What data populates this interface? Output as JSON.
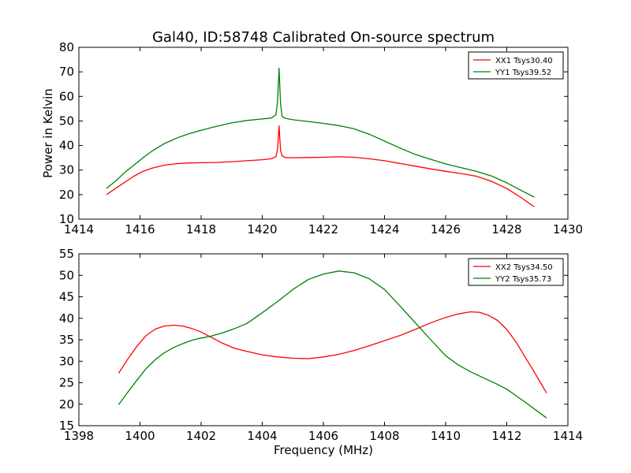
{
  "figure": {
    "title": "Gal40, ID:58748 Calibrated On-source spectrum"
  },
  "chart_data": [
    {
      "type": "line",
      "title": "Gal40, ID:58748 Calibrated On-source spectrum",
      "xlabel": "",
      "ylabel": "Power in Kelvin",
      "xlim": [
        1414,
        1430
      ],
      "ylim": [
        10,
        80
      ],
      "xticks": [
        1414,
        1416,
        1418,
        1420,
        1422,
        1424,
        1426,
        1428,
        1430
      ],
      "yticks": [
        10,
        20,
        30,
        40,
        50,
        60,
        70,
        80
      ],
      "grid": false,
      "legend_position": "top-right",
      "series": [
        {
          "name": "XX1 Tsys30.40",
          "color": "#ff0000",
          "x": [
            1414.9,
            1415.2,
            1415.5,
            1415.8,
            1416.1,
            1416.4,
            1416.8,
            1417.2,
            1417.6,
            1418.0,
            1418.5,
            1419.0,
            1419.5,
            1420.0,
            1420.3,
            1420.45,
            1420.5,
            1420.55,
            1420.6,
            1420.65,
            1420.75,
            1421.0,
            1421.5,
            1422.0,
            1422.5,
            1423.0,
            1423.5,
            1424.0,
            1424.5,
            1425.0,
            1425.5,
            1426.0,
            1426.5,
            1427.0,
            1427.5,
            1428.0,
            1428.5,
            1428.9
          ],
          "y": [
            20,
            22.5,
            25,
            27.5,
            29.5,
            30.8,
            32,
            32.6,
            32.9,
            33.0,
            33.1,
            33.4,
            33.8,
            34.2,
            34.6,
            35.5,
            38.5,
            48,
            38,
            35.8,
            35.1,
            35.0,
            35.1,
            35.2,
            35.4,
            35.2,
            34.6,
            33.8,
            32.7,
            31.6,
            30.5,
            29.5,
            28.6,
            27.5,
            25.4,
            22.5,
            18.5,
            15
          ]
        },
        {
          "name": "YY1 Tsys39.52",
          "color": "#008000",
          "x": [
            1414.9,
            1415.2,
            1415.5,
            1415.8,
            1416.1,
            1416.4,
            1416.8,
            1417.2,
            1417.6,
            1418.0,
            1418.5,
            1419.0,
            1419.5,
            1420.0,
            1420.3,
            1420.45,
            1420.5,
            1420.55,
            1420.6,
            1420.65,
            1420.75,
            1421.0,
            1421.5,
            1422.0,
            1422.5,
            1423.0,
            1423.5,
            1424.0,
            1424.5,
            1425.0,
            1425.5,
            1426.0,
            1426.5,
            1427.0,
            1427.5,
            1428.0,
            1428.5,
            1428.9
          ],
          "y": [
            22.5,
            25.5,
            29,
            32,
            35,
            37.8,
            40.8,
            43,
            44.8,
            46.2,
            47.8,
            49.2,
            50.2,
            50.8,
            51.2,
            52.5,
            58,
            71.5,
            57,
            51.8,
            51.1,
            50.5,
            49.8,
            49.0,
            48.1,
            46.8,
            44.6,
            41.8,
            39.0,
            36.4,
            34.4,
            32.5,
            31.0,
            29.5,
            27.6,
            24.8,
            21.5,
            19
          ]
        }
      ]
    },
    {
      "type": "line",
      "title": "",
      "xlabel": "Frequency (MHz)",
      "ylabel": "",
      "xlim": [
        1398,
        1414
      ],
      "ylim": [
        15,
        55
      ],
      "xticks": [
        1398,
        1400,
        1402,
        1404,
        1406,
        1408,
        1410,
        1412,
        1414
      ],
      "yticks": [
        15,
        20,
        25,
        30,
        35,
        40,
        45,
        50,
        55
      ],
      "grid": false,
      "legend_position": "top-right",
      "series": [
        {
          "name": "XX2 Tsys34.50",
          "color": "#ff0000",
          "x": [
            1399.3,
            1399.6,
            1399.9,
            1400.2,
            1400.5,
            1400.8,
            1401.1,
            1401.4,
            1401.7,
            1402.0,
            1402.3,
            1402.7,
            1403.1,
            1403.5,
            1404.0,
            1404.5,
            1405.0,
            1405.5,
            1406.0,
            1406.5,
            1407.0,
            1407.5,
            1408.0,
            1408.5,
            1409.0,
            1409.5,
            1410.0,
            1410.4,
            1410.8,
            1411.1,
            1411.4,
            1411.7,
            1412.0,
            1412.3,
            1412.6,
            1412.9,
            1413.3
          ],
          "y": [
            27.2,
            30.5,
            33.5,
            36,
            37.5,
            38.2,
            38.4,
            38.2,
            37.6,
            36.8,
            35.7,
            34.2,
            33.0,
            32.3,
            31.5,
            31.0,
            30.7,
            30.6,
            31.0,
            31.6,
            32.5,
            33.6,
            34.8,
            36.0,
            37.4,
            38.9,
            40.2,
            41.0,
            41.5,
            41.4,
            40.7,
            39.5,
            37.4,
            34.5,
            31.0,
            27.5,
            22.6
          ]
        },
        {
          "name": "YY2 Tsys35.73",
          "color": "#008000",
          "x": [
            1399.3,
            1399.6,
            1399.9,
            1400.2,
            1400.5,
            1400.8,
            1401.1,
            1401.4,
            1401.7,
            1402.0,
            1402.3,
            1402.7,
            1403.1,
            1403.5,
            1404.0,
            1404.5,
            1405.0,
            1405.5,
            1406.0,
            1406.5,
            1407.0,
            1407.5,
            1408.0,
            1408.5,
            1409.0,
            1409.5,
            1410.0,
            1410.4,
            1410.8,
            1411.1,
            1411.4,
            1411.7,
            1412.0,
            1412.3,
            1412.6,
            1412.9,
            1413.3
          ],
          "y": [
            19.9,
            22.8,
            25.6,
            28.3,
            30.4,
            32.0,
            33.2,
            34.1,
            34.9,
            35.4,
            35.8,
            36.6,
            37.6,
            38.8,
            41.3,
            43.9,
            46.7,
            49.0,
            50.3,
            51.0,
            50.6,
            49.2,
            46.7,
            42.9,
            39.0,
            35.1,
            31.3,
            29.2,
            27.6,
            26.6,
            25.6,
            24.6,
            23.5,
            22.0,
            20.5,
            18.9,
            16.8
          ]
        }
      ]
    }
  ]
}
